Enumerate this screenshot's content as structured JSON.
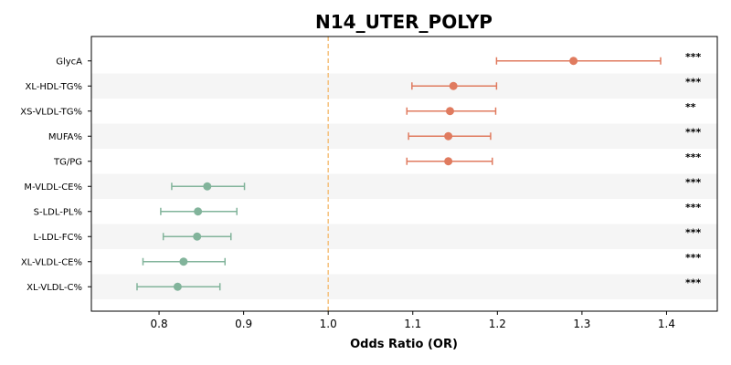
{
  "chart_data": {
    "type": "forest",
    "title": "N14_UTER_POLYP",
    "xlabel": "Odds Ratio (OR)",
    "xlim": [
      0.72,
      1.46
    ],
    "xticks": [
      0.8,
      0.9,
      1.0,
      1.1,
      1.2,
      1.3,
      1.4
    ],
    "xtick_labels": [
      "0.8",
      "0.9",
      "1.0",
      "1.1",
      "1.2",
      "1.3",
      "1.4"
    ],
    "reference_line": 1.0,
    "colors": {
      "positive": "#e07b5f",
      "negative": "#82b49b",
      "reference": "#f5c07a",
      "band": "#f5f5f5"
    },
    "rows": [
      {
        "label": "GlycA",
        "or": 1.29,
        "ci_low": 1.199,
        "ci_high": 1.393,
        "sig": "***",
        "direction": "positive"
      },
      {
        "label": "XL-HDL-TG%",
        "or": 1.148,
        "ci_low": 1.099,
        "ci_high": 1.199,
        "sig": "***",
        "direction": "positive"
      },
      {
        "label": "XS-VLDL-TG%",
        "or": 1.144,
        "ci_low": 1.093,
        "ci_high": 1.198,
        "sig": "**",
        "direction": "positive"
      },
      {
        "label": "MUFA%",
        "or": 1.142,
        "ci_low": 1.095,
        "ci_high": 1.192,
        "sig": "***",
        "direction": "positive"
      },
      {
        "label": "TG/PG",
        "or": 1.142,
        "ci_low": 1.093,
        "ci_high": 1.194,
        "sig": "***",
        "direction": "positive"
      },
      {
        "label": "M-VLDL-CE%",
        "or": 0.857,
        "ci_low": 0.815,
        "ci_high": 0.901,
        "sig": "***",
        "direction": "negative"
      },
      {
        "label": "S-LDL-PL%",
        "or": 0.846,
        "ci_low": 0.802,
        "ci_high": 0.892,
        "sig": "***",
        "direction": "negative"
      },
      {
        "label": "L-LDL-FC%",
        "or": 0.845,
        "ci_low": 0.805,
        "ci_high": 0.885,
        "sig": "***",
        "direction": "negative"
      },
      {
        "label": "XL-VLDL-CE%",
        "or": 0.829,
        "ci_low": 0.781,
        "ci_high": 0.878,
        "sig": "***",
        "direction": "negative"
      },
      {
        "label": "XL-VLDL-C%",
        "or": 0.822,
        "ci_low": 0.774,
        "ci_high": 0.872,
        "sig": "***",
        "direction": "negative"
      }
    ]
  }
}
